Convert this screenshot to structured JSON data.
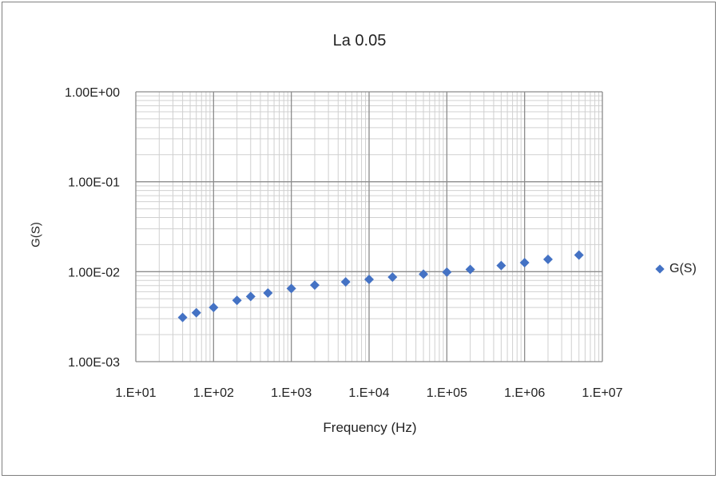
{
  "chart_data": {
    "type": "scatter",
    "title": "La 0.05",
    "xlabel": "Frequency (Hz)",
    "ylabel": "G(S)",
    "x_scale": "log",
    "y_scale": "log",
    "xlim": [
      10,
      10000000
    ],
    "ylim": [
      0.001,
      1
    ],
    "x_ticks": [
      "1.E+01",
      "1.E+02",
      "1.E+03",
      "1.E+04",
      "1.E+05",
      "1.E+06",
      "1.E+07"
    ],
    "y_ticks": [
      "1.00E-03",
      "1.00E-02",
      "1.00E-01",
      "1.00E+00"
    ],
    "grid": true,
    "legend": "right",
    "series": [
      {
        "name": "G(S)",
        "color": "#4472c4",
        "marker": "diamond",
        "x": [
          40,
          60,
          100,
          200,
          300,
          500,
          1000,
          2000,
          5000,
          10000,
          20000,
          50000,
          100000,
          200000,
          500000,
          1000000,
          2000000,
          5000000
        ],
        "y": [
          0.0031,
          0.0035,
          0.004,
          0.0048,
          0.0053,
          0.0058,
          0.0065,
          0.0071,
          0.0077,
          0.0082,
          0.0087,
          0.0094,
          0.0099,
          0.0106,
          0.0117,
          0.0126,
          0.0137,
          0.0153
        ]
      }
    ]
  }
}
